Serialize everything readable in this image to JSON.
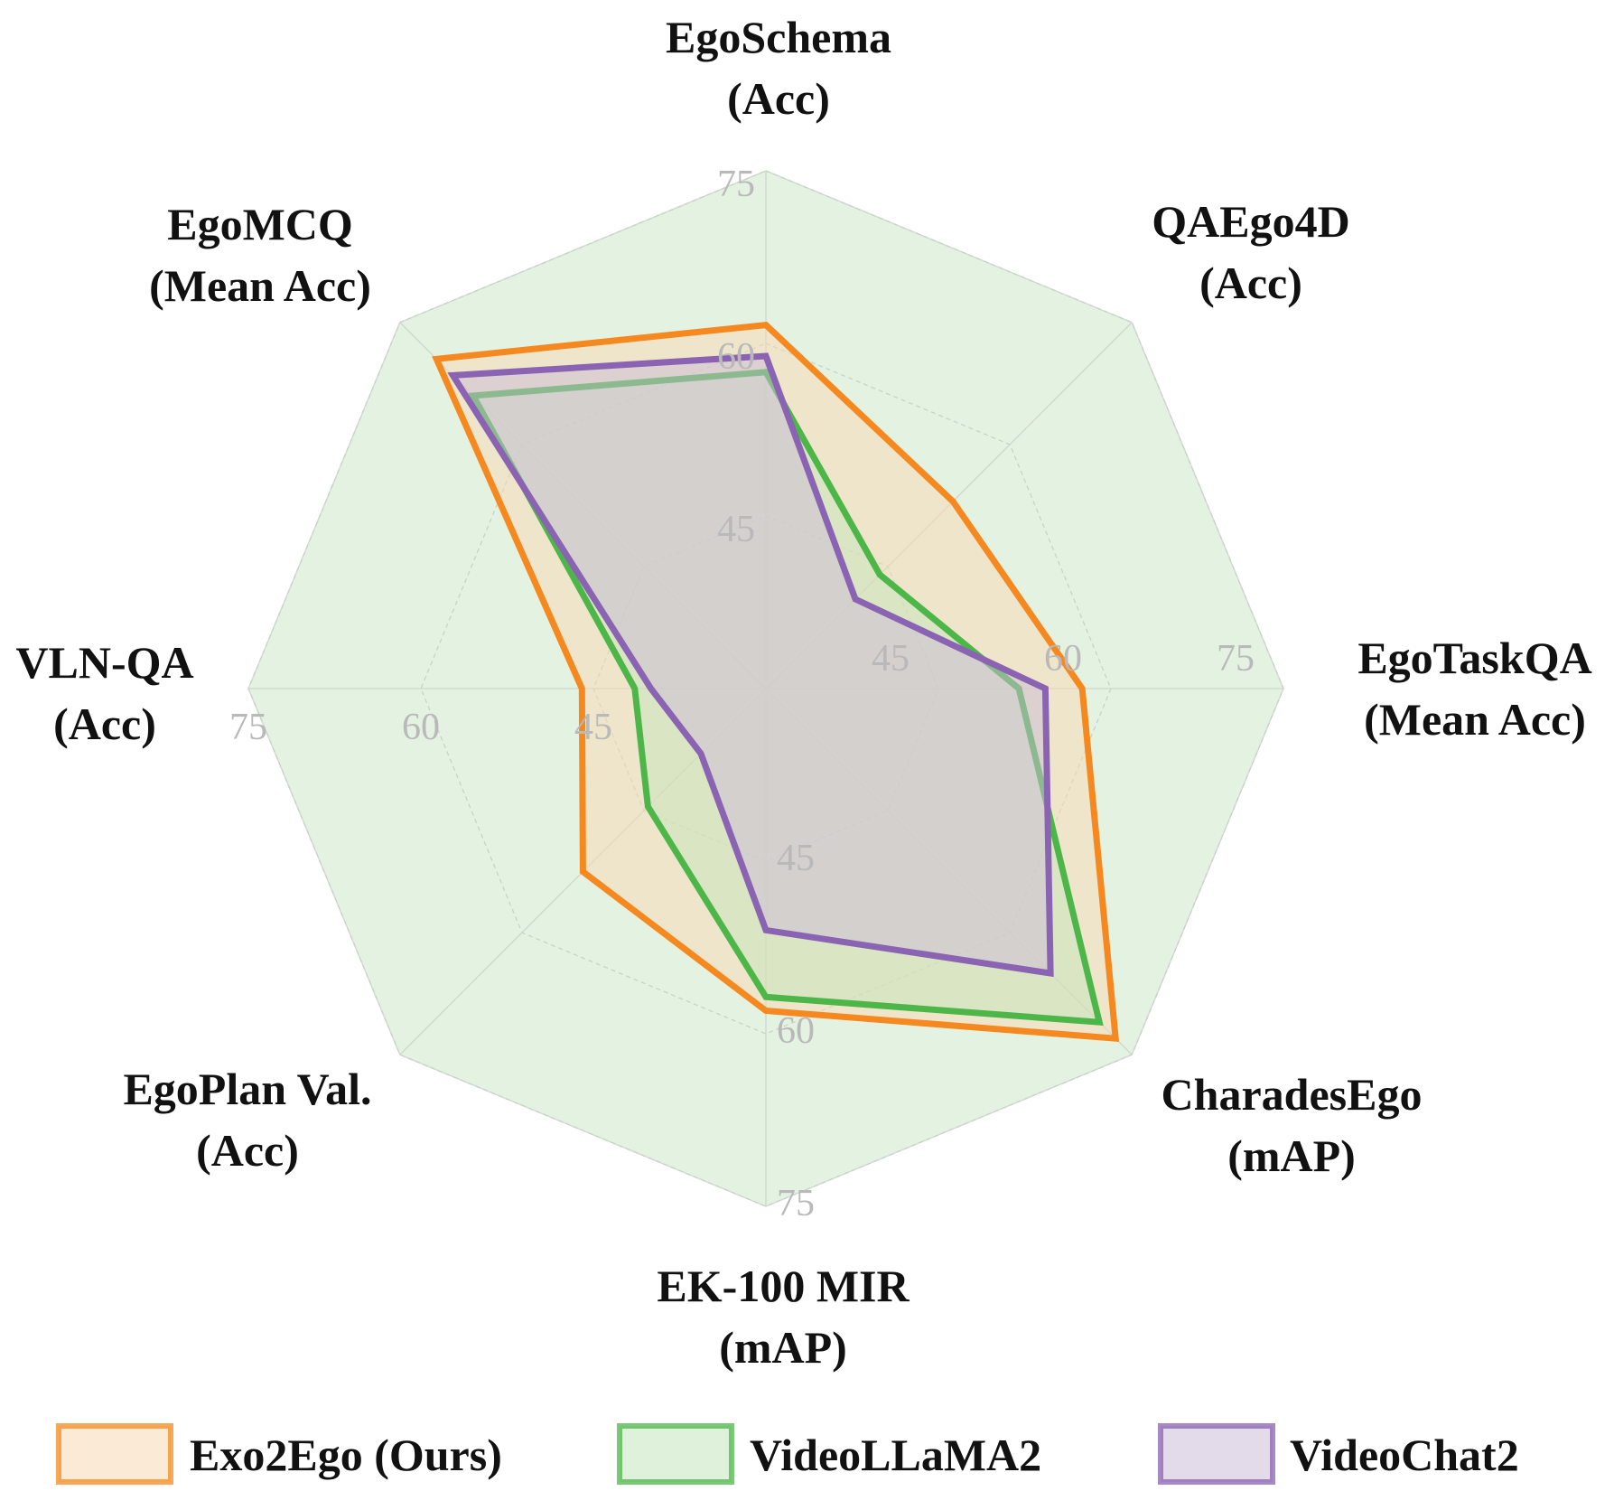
{
  "chart_data": {
    "type": "radar",
    "axes": [
      {
        "name": "EgoSchema",
        "metric": "(Acc)",
        "ticks": [
          "75",
          "60",
          "45"
        ]
      },
      {
        "name": "QAEgo4D",
        "metric": "(Acc)",
        "ticks": []
      },
      {
        "name": "EgoTaskQA",
        "metric": "(Mean Acc)",
        "ticks": [
          "75",
          "60",
          "45"
        ]
      },
      {
        "name": "CharadesEgo",
        "metric": "(mAP)",
        "ticks": []
      },
      {
        "name": "EK-100 MIR",
        "metric": "(mAP)",
        "ticks": [
          "75",
          "60",
          "45"
        ]
      },
      {
        "name": "EgoPlan Val.",
        "metric": "(Acc)",
        "ticks": []
      },
      {
        "name": "VLN-QA",
        "metric": "(Acc)",
        "ticks": [
          "75",
          "60",
          "45"
        ]
      },
      {
        "name": "EgoMCQ",
        "metric": "(Mean Acc)",
        "ticks": []
      }
    ],
    "range": [
      30,
      75
    ],
    "rings": [
      45,
      60,
      75
    ],
    "series": [
      {
        "name": "Exo2Ego (Ours)",
        "color": "#f5891f",
        "fill": "#f8d8b4",
        "values": [
          61.6,
          53.0,
          57.5,
          73.0,
          58.0,
          52.5,
          46.0,
          70.5
        ]
      },
      {
        "name": "VideoLLaMA2",
        "color": "#4cb748",
        "fill": "#c6e6be",
        "values": [
          57.5,
          44.0,
          52.0,
          71.0,
          56.8,
          44.5,
          41.4,
          66.0
        ]
      },
      {
        "name": "VideoChat2",
        "color": "#8a63b2",
        "fill": "#ccbcd8",
        "values": [
          58.9,
          41.0,
          54.3,
          65.0,
          51.0,
          38.0,
          40.0,
          68.5
        ]
      }
    ],
    "legend_position": "bottom"
  }
}
